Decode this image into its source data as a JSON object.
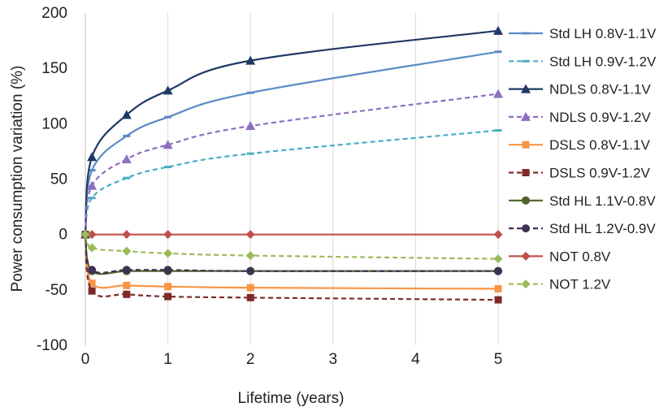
{
  "chart_data": {
    "type": "line",
    "title": "",
    "xlabel": "Lifetime (years)",
    "ylabel": "Power consumption variation (%)",
    "xlim": [
      0,
      5
    ],
    "ylim": [
      -100,
      200
    ],
    "x_ticks": [
      "0",
      "1",
      "2",
      "3",
      "4",
      "5"
    ],
    "y_ticks": [
      "200",
      "150",
      "100",
      "50",
      "0",
      "-50",
      "-100"
    ],
    "grid": "vertical",
    "legend_position": "right",
    "x": [
      0,
      0.08,
      0.5,
      1,
      2,
      5
    ],
    "series": [
      {
        "name": "Std LH 0.8V-1.1V",
        "color": "#5b8ac7",
        "dash": "solid",
        "marker": "dash",
        "values": [
          0,
          58,
          89,
          106,
          128,
          165
        ]
      },
      {
        "name": "Std LH 0.9V-1.2V",
        "color": "#4bacc6",
        "dash": "dashed",
        "marker": "dash",
        "values": [
          0,
          33,
          51,
          61,
          73,
          94
        ]
      },
      {
        "name": "NDLS 0.8V-1.1V",
        "color": "#1f3864",
        "dash": "solid",
        "marker": "triangle",
        "values": [
          0,
          70,
          108,
          130,
          157,
          184
        ]
      },
      {
        "name": "NDLS 0.9V-1.2V",
        "color": "#8e6fbf",
        "dash": "dashed",
        "marker": "triangle",
        "values": [
          0,
          44,
          68,
          81,
          98,
          127
        ]
      },
      {
        "name": "DSLS 0.8V-1.1V",
        "color": "#f79646",
        "dash": "solid",
        "marker": "square",
        "values": [
          0,
          -44,
          -46,
          -47,
          -48,
          -49
        ]
      },
      {
        "name": "DSLS 0.9V-1.2V",
        "color": "#7f2b2b",
        "dash": "dashed",
        "marker": "square",
        "values": [
          0,
          -51,
          -54,
          -56,
          -57,
          -59
        ]
      },
      {
        "name": "Std HL 1.1V-0.8V",
        "color": "#4f6228",
        "dash": "solid",
        "marker": "circle",
        "values": [
          0,
          -33,
          -33,
          -33,
          -33,
          -33
        ]
      },
      {
        "name": "Std HL 1.2V-0.9V",
        "color": "#3f3151",
        "dash": "dashed",
        "marker": "circle",
        "values": [
          0,
          -32,
          -32,
          -32,
          -33,
          -33
        ]
      },
      {
        "name": "NOT 0.8V",
        "color": "#c0504d",
        "dash": "solid",
        "marker": "diamond",
        "values": [
          0,
          0,
          0,
          0,
          0,
          0
        ]
      },
      {
        "name": "NOT 1.2V",
        "color": "#9bbb59",
        "dash": "dashed",
        "marker": "diamond",
        "values": [
          0,
          -12,
          -15,
          -17,
          -19,
          -22
        ]
      }
    ]
  }
}
